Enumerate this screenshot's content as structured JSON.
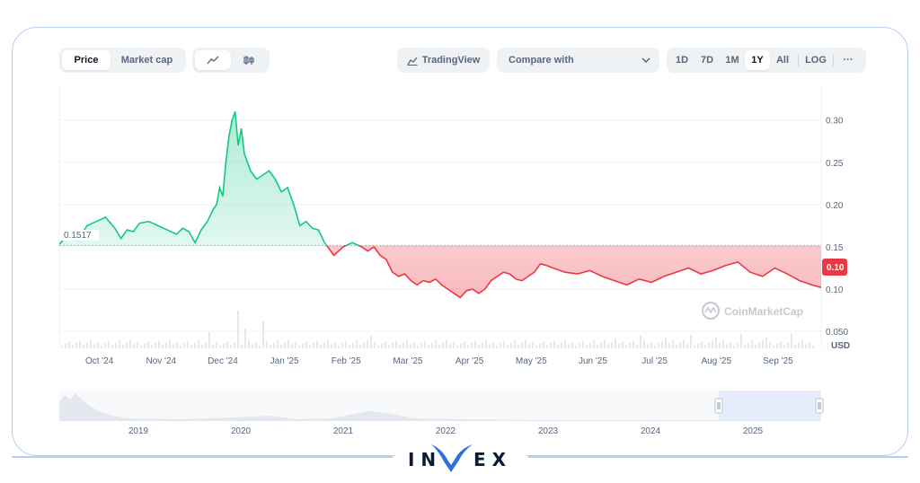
{
  "toolbar": {
    "tabs": [
      "Price",
      "Market cap"
    ],
    "active_tab": "Price",
    "chart_style_icons": [
      "line-chart-icon",
      "candlestick-icon"
    ],
    "tradingview_label": "TradingView",
    "compare_label": "Compare with",
    "ranges": [
      "1D",
      "7D",
      "1M",
      "1Y",
      "All",
      "LOG"
    ],
    "active_range": "1Y",
    "more_label": "···"
  },
  "chart": {
    "baseline_label": "0.1517",
    "current_label": "0.10",
    "currency_label": "USD",
    "watermark": "CoinMarketCap",
    "colors": {
      "up": "#16c784",
      "down": "#ea3943",
      "up_fill": "#16c784",
      "down_fill": "#ea3943"
    }
  },
  "navigator": {
    "years": [
      "2019",
      "2020",
      "2021",
      "2022",
      "2023",
      "2024",
      "2025"
    ]
  },
  "brand": {
    "name": "INVEX"
  },
  "chart_data": {
    "type": "line",
    "title": "",
    "xlabel": "",
    "ylabel": "USD",
    "baseline": 0.1517,
    "current": 0.1,
    "ylim": [
      0.03,
      0.34
    ],
    "yticks": [
      0.3,
      0.25,
      0.2,
      0.15,
      0.1,
      0.05
    ],
    "ytick_labels": [
      "0.30",
      "0.25",
      "0.20",
      "0.15",
      "0.10",
      "0.050"
    ],
    "xticks": [
      "Oct '24",
      "Nov '24",
      "Dec '24",
      "Jan '25",
      "Feb '25",
      "Mar '25",
      "Apr '25",
      "May '25",
      "Jun '25",
      "Jul '25",
      "Aug '25",
      "Sep '25"
    ],
    "xtick_positions": [
      0.65,
      1.65,
      2.65,
      3.65,
      4.65,
      5.65,
      6.65,
      7.65,
      8.65,
      9.65,
      10.65,
      11.65
    ],
    "x": [
      0,
      0.15,
      0.3,
      0.45,
      0.6,
      0.75,
      0.9,
      1.0,
      1.1,
      1.2,
      1.3,
      1.45,
      1.6,
      1.75,
      1.9,
      2.0,
      2.1,
      2.2,
      2.3,
      2.4,
      2.5,
      2.55,
      2.6,
      2.65,
      2.7,
      2.75,
      2.8,
      2.85,
      2.9,
      2.95,
      3.0,
      3.1,
      3.2,
      3.3,
      3.4,
      3.5,
      3.6,
      3.7,
      3.8,
      3.9,
      4.0,
      4.1,
      4.2,
      4.3,
      4.45,
      4.6,
      4.75,
      4.9,
      5.0,
      5.1,
      5.2,
      5.3,
      5.4,
      5.5,
      5.6,
      5.7,
      5.8,
      5.9,
      6.0,
      6.1,
      6.2,
      6.3,
      6.4,
      6.5,
      6.6,
      6.7,
      6.8,
      6.9,
      7.0,
      7.1,
      7.2,
      7.3,
      7.4,
      7.5,
      7.6,
      7.7,
      7.8,
      7.9,
      8.0,
      8.2,
      8.4,
      8.6,
      8.8,
      9.0,
      9.2,
      9.4,
      9.6,
      9.8,
      10.0,
      10.2,
      10.4,
      10.6,
      10.8,
      11.0,
      11.2,
      11.4,
      11.6,
      11.8,
      12.0,
      12.2,
      12.35
    ],
    "values": [
      0.153,
      0.165,
      0.158,
      0.175,
      0.18,
      0.185,
      0.172,
      0.16,
      0.17,
      0.168,
      0.178,
      0.18,
      0.175,
      0.17,
      0.165,
      0.172,
      0.168,
      0.155,
      0.17,
      0.18,
      0.195,
      0.2,
      0.22,
      0.21,
      0.25,
      0.28,
      0.3,
      0.31,
      0.27,
      0.29,
      0.26,
      0.24,
      0.23,
      0.235,
      0.24,
      0.23,
      0.215,
      0.22,
      0.2,
      0.175,
      0.18,
      0.172,
      0.17,
      0.155,
      0.14,
      0.15,
      0.155,
      0.15,
      0.145,
      0.15,
      0.14,
      0.135,
      0.12,
      0.115,
      0.118,
      0.11,
      0.105,
      0.11,
      0.108,
      0.112,
      0.105,
      0.1,
      0.095,
      0.09,
      0.098,
      0.1,
      0.095,
      0.1,
      0.11,
      0.115,
      0.12,
      0.118,
      0.112,
      0.11,
      0.115,
      0.12,
      0.13,
      0.128,
      0.125,
      0.12,
      0.118,
      0.122,
      0.115,
      0.11,
      0.105,
      0.112,
      0.108,
      0.115,
      0.12,
      0.125,
      0.118,
      0.122,
      0.128,
      0.132,
      0.12,
      0.115,
      0.125,
      0.118,
      0.11,
      0.105,
      0.102
    ]
  }
}
